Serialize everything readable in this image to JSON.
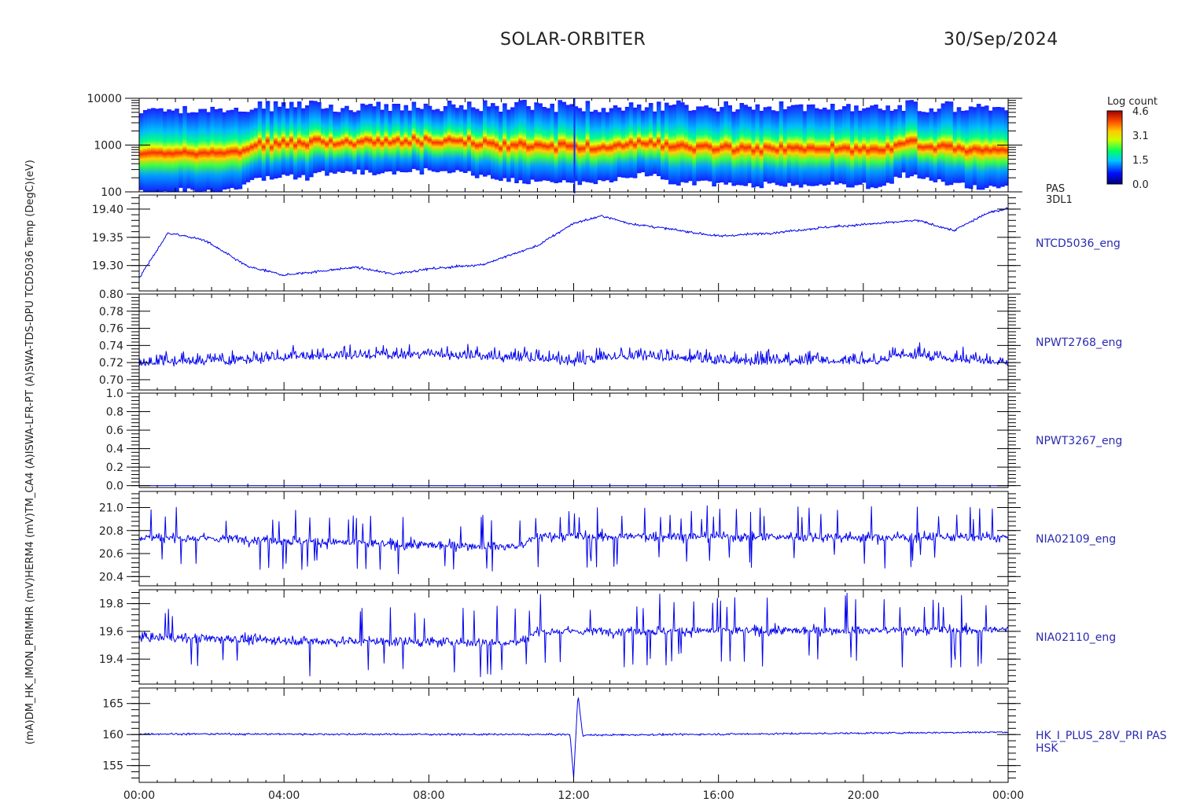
{
  "header": {
    "mission": "SOLAR-ORBITER",
    "date": "30/Sep/2024"
  },
  "colors": {
    "trace": "#0000ee",
    "axis": "#000000",
    "label": "#2a2ab0"
  },
  "chart_data": [
    {
      "type": "heatmap",
      "ylabel": "(eV)",
      "yscale": "log",
      "ylim": [
        100,
        10000
      ],
      "yticks": [
        "10000",
        "1000",
        "100"
      ],
      "right_label": [
        "PAS",
        "3DL1"
      ],
      "colorbar": {
        "title": "Log count",
        "ticks": [
          "4.6",
          "3.1",
          "1.5",
          "0.0"
        ],
        "range": [
          0.0,
          4.6
        ]
      },
      "peak_energy_ev": [
        {
          "t": 0.0,
          "e": 520
        },
        {
          "t": 1.0,
          "e": 560
        },
        {
          "t": 2.0,
          "e": 560
        },
        {
          "t": 2.5,
          "e": 600
        },
        {
          "t": 3.0,
          "e": 850
        },
        {
          "t": 3.5,
          "e": 1050
        },
        {
          "t": 4.0,
          "e": 1150
        },
        {
          "t": 4.5,
          "e": 1050
        },
        {
          "t": 5.0,
          "e": 1350
        },
        {
          "t": 6.0,
          "e": 1450
        },
        {
          "t": 7.0,
          "e": 1450
        },
        {
          "t": 8.0,
          "e": 1500
        },
        {
          "t": 9.0,
          "e": 1350
        },
        {
          "t": 10.0,
          "e": 950
        },
        {
          "t": 11.0,
          "e": 900
        },
        {
          "t": 12.0,
          "e": 880
        },
        {
          "t": 13.0,
          "e": 920
        },
        {
          "t": 14.0,
          "e": 1300
        },
        {
          "t": 14.6,
          "e": 850
        },
        {
          "t": 16.0,
          "e": 800
        },
        {
          "t": 18.0,
          "e": 760
        },
        {
          "t": 19.0,
          "e": 820
        },
        {
          "t": 20.5,
          "e": 650
        },
        {
          "t": 21.0,
          "e": 1300
        },
        {
          "t": 22.0,
          "e": 900
        },
        {
          "t": 23.0,
          "e": 680
        },
        {
          "t": 24.0,
          "e": 650
        }
      ]
    },
    {
      "type": "line",
      "ylabel": "TCD5036 Temp (DegC)",
      "series_name": "NTCD5036_eng",
      "ylim": [
        19.255,
        19.425
      ],
      "yticks": [
        "19.40",
        "19.35",
        "19.30"
      ],
      "knots": [
        {
          "t": 0.0,
          "y": 19.278
        },
        {
          "t": 0.8,
          "y": 19.358
        },
        {
          "t": 1.8,
          "y": 19.345
        },
        {
          "t": 3.0,
          "y": 19.298
        },
        {
          "t": 4.0,
          "y": 19.283
        },
        {
          "t": 6.0,
          "y": 19.297
        },
        {
          "t": 7.0,
          "y": 19.285
        },
        {
          "t": 8.0,
          "y": 19.294
        },
        {
          "t": 9.5,
          "y": 19.302
        },
        {
          "t": 11.0,
          "y": 19.335
        },
        {
          "t": 12.0,
          "y": 19.375
        },
        {
          "t": 12.8,
          "y": 19.388
        },
        {
          "t": 13.5,
          "y": 19.375
        },
        {
          "t": 14.5,
          "y": 19.366
        },
        {
          "t": 16.0,
          "y": 19.352
        },
        {
          "t": 17.5,
          "y": 19.358
        },
        {
          "t": 19.0,
          "y": 19.368
        },
        {
          "t": 20.5,
          "y": 19.375
        },
        {
          "t": 21.5,
          "y": 19.38
        },
        {
          "t": 22.5,
          "y": 19.362
        },
        {
          "t": 23.4,
          "y": 19.392
        },
        {
          "t": 24.0,
          "y": 19.402
        }
      ]
    },
    {
      "type": "line",
      "ylabel": "IPSWA-TDS-DPU-S1 (A)",
      "series_name": "NPWT2768_eng",
      "ylim": [
        0.688,
        0.8
      ],
      "yticks": [
        "0.80",
        "0.78",
        "0.76",
        "0.74",
        "0.72",
        "0.70"
      ],
      "knots": [
        {
          "t": 0.0,
          "y": 0.72
        },
        {
          "t": 2.5,
          "y": 0.722
        },
        {
          "t": 5.0,
          "y": 0.728
        },
        {
          "t": 8.0,
          "y": 0.73
        },
        {
          "t": 9.5,
          "y": 0.727
        },
        {
          "t": 12.0,
          "y": 0.722
        },
        {
          "t": 14.0,
          "y": 0.728
        },
        {
          "t": 16.0,
          "y": 0.722
        },
        {
          "t": 20.5,
          "y": 0.722
        },
        {
          "t": 21.0,
          "y": 0.73
        },
        {
          "t": 24.0,
          "y": 0.72
        }
      ]
    },
    {
      "type": "line",
      "ylabel": "IPSWA-LFR-PT-S1 (A)",
      "series_name": "NPWT3267_eng",
      "ylim": [
        -0.02,
        1.0
      ],
      "yticks": [
        "1.0",
        "0.8",
        "0.6",
        "0.4",
        "0.2",
        "0.0"
      ],
      "knots": [
        {
          "t": 0.0,
          "y": 0.0
        },
        {
          "t": 24.0,
          "y": 0.0
        }
      ]
    },
    {
      "type": "line",
      "ylabel": "TM_CA4 (mV)",
      "series_name": "NIA02109_eng",
      "ylim": [
        20.32,
        21.14
      ],
      "yticks": [
        "21.0",
        "20.8",
        "20.6",
        "20.4"
      ],
      "knots": [
        {
          "t": 0.0,
          "y": 20.74
        },
        {
          "t": 2.5,
          "y": 20.73
        },
        {
          "t": 7.0,
          "y": 20.68
        },
        {
          "t": 10.5,
          "y": 20.66
        },
        {
          "t": 11.0,
          "y": 20.75
        },
        {
          "t": 24.0,
          "y": 20.74
        }
      ]
    },
    {
      "type": "line",
      "ylabel": "THERM4 (mV)",
      "series_name": "NIA02110_eng",
      "ylim": [
        19.22,
        19.9
      ],
      "yticks": [
        "19.8",
        "19.6",
        "19.4"
      ],
      "knots": [
        {
          "t": 0.0,
          "y": 19.56
        },
        {
          "t": 5.0,
          "y": 19.53
        },
        {
          "t": 10.5,
          "y": 19.52
        },
        {
          "t": 11.0,
          "y": 19.6
        },
        {
          "t": 24.0,
          "y": 19.61
        }
      ]
    },
    {
      "type": "line",
      "ylabel": "PRI (mA)",
      "series_name": [
        "HK_I_PLUS_28V_PRI PAS",
        "HSK"
      ],
      "ylim": [
        152.3,
        167.5
      ],
      "yticks": [
        "165",
        "160",
        "155"
      ],
      "knots": [
        {
          "t": 0.0,
          "y": 160.1
        },
        {
          "t": 11.9,
          "y": 160.0
        },
        {
          "t": 12.0,
          "y": 153.0
        },
        {
          "t": 12.12,
          "y": 166.5
        },
        {
          "t": 12.25,
          "y": 159.9
        },
        {
          "t": 24.0,
          "y": 160.4
        }
      ]
    }
  ],
  "left_axis_text": "(mA)DM_HK_IMON_PRIMHR (mV)HERM4 (mV)TM_CA4 (A)ISWA-LFR-PT (A)SWA-TDS-DPU TCD5036 Temp (DegC)(eV)",
  "xaxis": {
    "range_hours": [
      0,
      24
    ],
    "ticks": [
      "00:00",
      "04:00",
      "08:00",
      "12:00",
      "16:00",
      "20:00",
      "00:00"
    ]
  }
}
